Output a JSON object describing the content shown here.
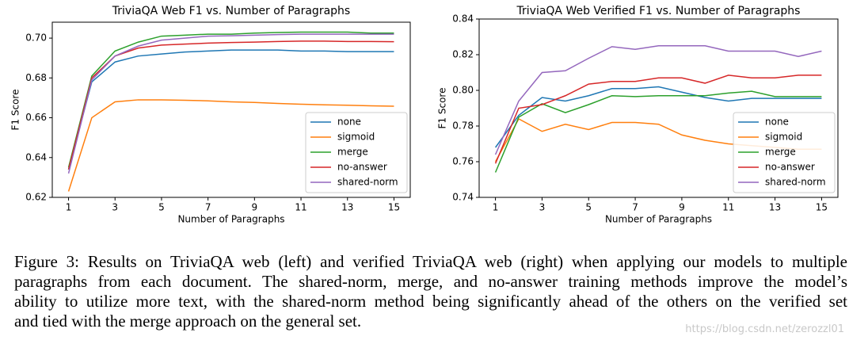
{
  "chart_data": [
    {
      "type": "line",
      "title": "TriviaQA Web F1 vs. Number of Paragraphs",
      "xlabel": "Number of Paragraphs",
      "ylabel": "F1 Score",
      "x": [
        1,
        2,
        3,
        4,
        5,
        6,
        7,
        8,
        9,
        10,
        11,
        12,
        13,
        14,
        15
      ],
      "xlim": [
        0.3,
        15.7
      ],
      "xticks": [
        1,
        3,
        5,
        7,
        9,
        11,
        13,
        15
      ],
      "ylim": [
        0.62,
        0.708
      ],
      "yticks": [
        0.62,
        0.64,
        0.66,
        0.68,
        {
          "value": 0.7,
          "label": "0.70"
        }
      ],
      "legend": "lower right",
      "series": [
        {
          "name": "none",
          "color": "#1f77b4",
          "values": [
            0.634,
            0.678,
            0.688,
            0.691,
            0.692,
            0.693,
            0.6935,
            0.694,
            0.694,
            0.694,
            0.6935,
            0.6935,
            0.6932,
            0.6932,
            0.6932
          ]
        },
        {
          "name": "sigmoid",
          "color": "#ff7f0e",
          "values": [
            0.623,
            0.66,
            0.668,
            0.669,
            0.669,
            0.6688,
            0.6685,
            0.668,
            0.6677,
            0.6672,
            0.6668,
            0.6665,
            0.6663,
            0.666,
            0.6658
          ]
        },
        {
          "name": "merge",
          "color": "#2ca02c",
          "values": [
            0.635,
            0.681,
            0.6935,
            0.698,
            0.701,
            0.7015,
            0.702,
            0.702,
            0.7025,
            0.7028,
            0.703,
            0.703,
            0.703,
            0.7025,
            0.7025
          ]
        },
        {
          "name": "no-answer",
          "color": "#d62728",
          "values": [
            0.634,
            0.68,
            0.691,
            0.695,
            0.6965,
            0.697,
            0.6975,
            0.6978,
            0.698,
            0.6983,
            0.6985,
            0.6985,
            0.6983,
            0.6983,
            0.6982
          ]
        },
        {
          "name": "shared-norm",
          "color": "#9467bd",
          "values": [
            0.632,
            0.679,
            0.691,
            0.696,
            0.699,
            0.7,
            0.701,
            0.7012,
            0.7015,
            0.7018,
            0.702,
            0.702,
            0.702,
            0.702,
            0.702
          ]
        }
      ]
    },
    {
      "type": "line",
      "title": "TriviaQA Web Verified F1 vs. Number of Paragraphs",
      "xlabel": "Number of Paragraphs",
      "ylabel": "F1 Score",
      "x": [
        1,
        2,
        3,
        4,
        5,
        6,
        7,
        8,
        9,
        10,
        11,
        12,
        13,
        14,
        15
      ],
      "xlim": [
        0.3,
        15.7
      ],
      "xticks": [
        1,
        3,
        5,
        7,
        9,
        11,
        13,
        15
      ],
      "ylim": [
        0.74,
        0.84
      ],
      "yticks": [
        0.74,
        0.76,
        0.78,
        {
          "value": 0.8,
          "label": "0.80"
        },
        0.82,
        0.84
      ],
      "legend": "lower right",
      "series": [
        {
          "name": "none",
          "color": "#1f77b4",
          "values": [
            0.768,
            0.786,
            0.796,
            0.794,
            0.797,
            0.801,
            0.801,
            0.802,
            0.799,
            0.796,
            0.794,
            0.7955,
            0.7955,
            0.7955,
            0.7955
          ]
        },
        {
          "name": "sigmoid",
          "color": "#ff7f0e",
          "values": [
            0.76,
            0.784,
            0.777,
            0.781,
            0.778,
            0.782,
            0.782,
            0.781,
            0.775,
            0.772,
            0.77,
            0.769,
            0.768,
            0.767,
            0.767
          ]
        },
        {
          "name": "merge",
          "color": "#2ca02c",
          "values": [
            0.754,
            0.785,
            0.7925,
            0.7875,
            0.792,
            0.797,
            0.7965,
            0.797,
            0.797,
            0.797,
            0.7985,
            0.7995,
            0.7965,
            0.7965,
            0.7965
          ]
        },
        {
          "name": "no-answer",
          "color": "#d62728",
          "values": [
            0.759,
            0.79,
            0.792,
            0.797,
            0.8035,
            0.805,
            0.805,
            0.807,
            0.807,
            0.804,
            0.8085,
            0.807,
            0.807,
            0.8085,
            0.8085
          ]
        },
        {
          "name": "shared-norm",
          "color": "#9467bd",
          "values": [
            0.764,
            0.794,
            0.81,
            0.811,
            0.818,
            0.8245,
            0.823,
            0.825,
            0.825,
            0.825,
            0.822,
            0.822,
            0.822,
            0.819,
            0.822
          ]
        }
      ]
    }
  ],
  "caption": {
    "lines": [
      "Figure 3: Results on TriviaQA web (left) and verified TriviaQA web (right) when applying our models to multiple",
      "paragraphs from each document. The shared-norm, merge, and no-answer training methods improve the model’s",
      "ability to utilize more text, with the shared-norm method being significantly ahead of the others on the verified set",
      "and tied with the merge approach on the general set."
    ]
  },
  "watermark": "https://blog.csdn.net/zerozzl01"
}
